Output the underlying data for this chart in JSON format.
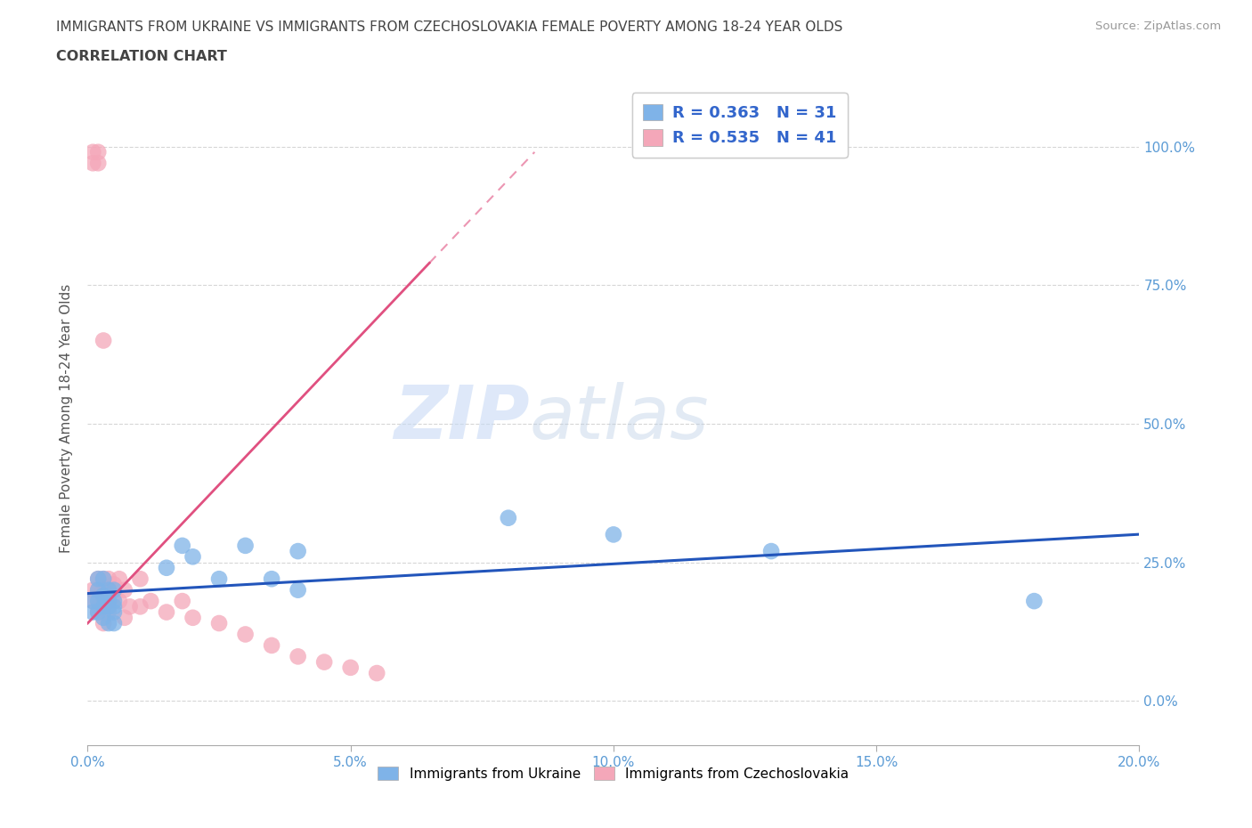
{
  "title_line1": "IMMIGRANTS FROM UKRAINE VS IMMIGRANTS FROM CZECHOSLOVAKIA FEMALE POVERTY AMONG 18-24 YEAR OLDS",
  "title_line2": "CORRELATION CHART",
  "source_text": "Source: ZipAtlas.com",
  "ylabel": "Female Poverty Among 18-24 Year Olds",
  "xlim": [
    0.0,
    0.2
  ],
  "ylim": [
    -0.08,
    1.1
  ],
  "yticks": [
    0.0,
    0.25,
    0.5,
    0.75,
    1.0
  ],
  "ytick_labels": [
    "0.0%",
    "25.0%",
    "50.0%",
    "75.0%",
    "100.0%"
  ],
  "xticks": [
    0.0,
    0.05,
    0.1,
    0.15,
    0.2
  ],
  "xtick_labels": [
    "0.0%",
    "5.0%",
    "10.0%",
    "15.0%",
    "20.0%"
  ],
  "ukraine_color": "#7fb3e8",
  "czechoslovakia_color": "#f4a7b9",
  "ukraine_line_color": "#2255bb",
  "czechoslovakia_line_color": "#e05080",
  "watermark1": "ZIP",
  "watermark2": "atlas",
  "legend_R_ukraine": "R = 0.363",
  "legend_N_ukraine": "N = 31",
  "legend_R_czechoslovakia": "R = 0.535",
  "legend_N_czechoslovakia": "N = 41",
  "ukraine_x": [
    0.001,
    0.001,
    0.002,
    0.002,
    0.002,
    0.002,
    0.003,
    0.003,
    0.003,
    0.003,
    0.004,
    0.004,
    0.004,
    0.004,
    0.005,
    0.005,
    0.005,
    0.005,
    0.005,
    0.015,
    0.018,
    0.02,
    0.025,
    0.03,
    0.035,
    0.04,
    0.04,
    0.08,
    0.1,
    0.13,
    0.18
  ],
  "ukraine_y": [
    0.16,
    0.18,
    0.2,
    0.16,
    0.18,
    0.22,
    0.17,
    0.15,
    0.19,
    0.22,
    0.18,
    0.14,
    0.2,
    0.17,
    0.16,
    0.18,
    0.2,
    0.14,
    0.17,
    0.24,
    0.28,
    0.26,
    0.22,
    0.28,
    0.22,
    0.27,
    0.2,
    0.33,
    0.3,
    0.27,
    0.18
  ],
  "czechoslovakia_x": [
    0.001,
    0.001,
    0.001,
    0.001,
    0.002,
    0.002,
    0.002,
    0.002,
    0.002,
    0.002,
    0.003,
    0.003,
    0.003,
    0.003,
    0.003,
    0.003,
    0.003,
    0.004,
    0.004,
    0.004,
    0.004,
    0.005,
    0.005,
    0.006,
    0.006,
    0.007,
    0.007,
    0.008,
    0.01,
    0.01,
    0.012,
    0.015,
    0.018,
    0.02,
    0.025,
    0.03,
    0.035,
    0.04,
    0.045,
    0.05,
    0.055
  ],
  "czechoslovakia_y": [
    0.99,
    0.97,
    0.2,
    0.18,
    0.99,
    0.97,
    0.2,
    0.17,
    0.22,
    0.16,
    0.65,
    0.22,
    0.2,
    0.17,
    0.19,
    0.16,
    0.14,
    0.18,
    0.16,
    0.2,
    0.22,
    0.21,
    0.19,
    0.22,
    0.18,
    0.2,
    0.15,
    0.17,
    0.22,
    0.17,
    0.18,
    0.16,
    0.18,
    0.15,
    0.14,
    0.12,
    0.1,
    0.08,
    0.07,
    0.06,
    0.05
  ],
  "background_color": "#ffffff",
  "grid_color": "#cccccc",
  "title_color": "#444444",
  "tick_label_color": "#5b9bd5"
}
